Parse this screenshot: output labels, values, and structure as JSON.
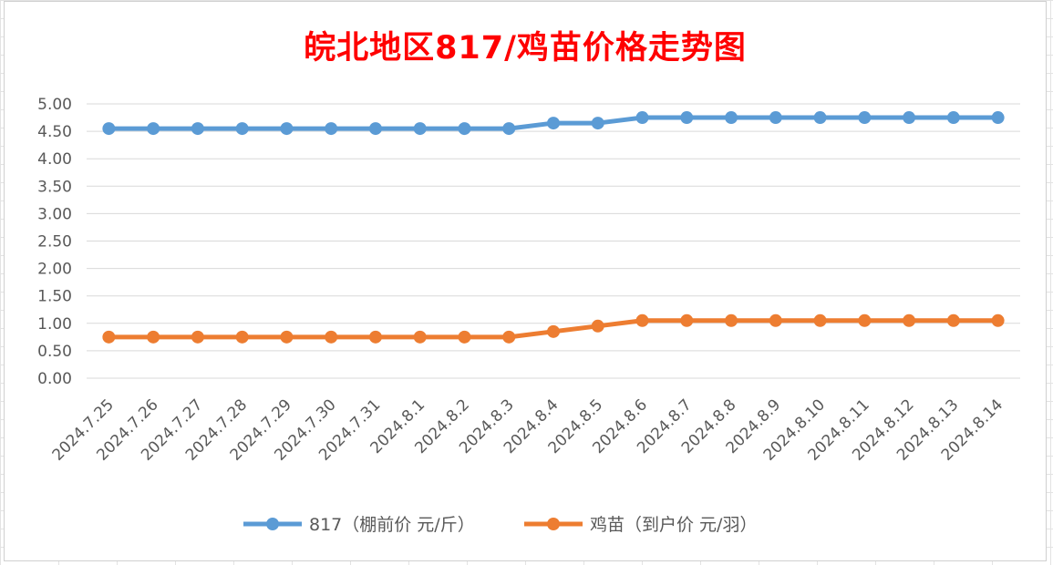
{
  "chart_data": {
    "type": "line",
    "title": "皖北地区817/鸡苗价格走势图",
    "categories": [
      "2024.7.25",
      "2024.7.26",
      "2024.7.27",
      "2024.7.28",
      "2024.7.29",
      "2024.7.30",
      "2024.7.31",
      "2024.8.1",
      "2024.8.2",
      "2024.8.3",
      "2024.8.4",
      "2024.8.5",
      "2024.8.6",
      "2024.8.7",
      "2024.8.8",
      "2024.8.9",
      "2024.8.10",
      "2024.8.11",
      "2024.8.12",
      "2024.8.13",
      "2024.8.14"
    ],
    "y_ticks": [
      "0.00",
      "0.50",
      "1.00",
      "1.50",
      "2.00",
      "2.50",
      "3.00",
      "3.50",
      "4.00",
      "4.50",
      "5.00"
    ],
    "ylim": [
      0,
      5
    ],
    "grid": true,
    "legend_position": "bottom",
    "series": [
      {
        "name": "817（棚前价 元/斤）",
        "color": "#5b9bd5",
        "values": [
          4.55,
          4.55,
          4.55,
          4.55,
          4.55,
          4.55,
          4.55,
          4.55,
          4.55,
          4.55,
          4.65,
          4.65,
          4.75,
          4.75,
          4.75,
          4.75,
          4.75,
          4.75,
          4.75,
          4.75,
          4.75
        ]
      },
      {
        "name": "鸡苗（到户价 元/羽）",
        "color": "#ed7d31",
        "values": [
          0.75,
          0.75,
          0.75,
          0.75,
          0.75,
          0.75,
          0.75,
          0.75,
          0.75,
          0.75,
          0.85,
          0.95,
          1.05,
          1.05,
          1.05,
          1.05,
          1.05,
          1.05,
          1.05,
          1.05,
          1.05
        ]
      }
    ]
  }
}
